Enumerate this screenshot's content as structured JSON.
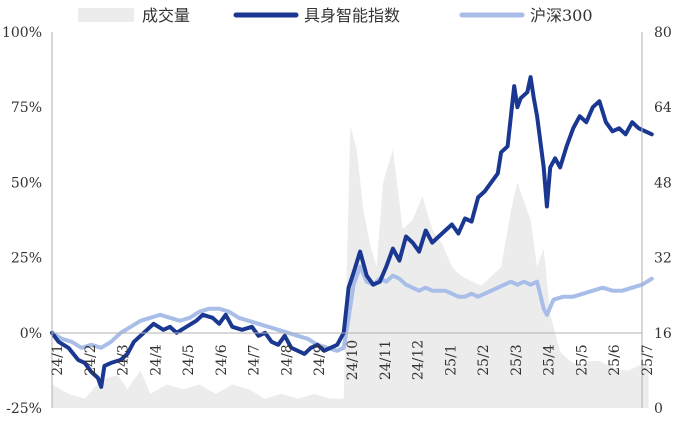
{
  "chart_data": {
    "type": "line",
    "title": "",
    "legend_position": "top",
    "grid": false,
    "legend": [
      {
        "label": "成交量",
        "kind": "area",
        "color": "#ececec"
      },
      {
        "label": "具身智能指数",
        "kind": "line",
        "color": "#1a3791"
      },
      {
        "label": "沪深300",
        "kind": "line",
        "color": "#a8bde8"
      }
    ],
    "y_left": {
      "ticks": [
        "100%",
        "75%",
        "50%",
        "25%",
        "0%",
        "-25%"
      ],
      "min": -25,
      "max": 100
    },
    "y_right": {
      "ticks": [
        "80",
        "64",
        "48",
        "32",
        "16",
        "0"
      ],
      "min": 0,
      "max": 80
    },
    "x_labels": [
      "24/1",
      "24/2",
      "24/3",
      "24/4",
      "24/5",
      "24/6",
      "24/7",
      "24/8",
      "24/9",
      "24/10",
      "24/11",
      "24/12",
      "25/1",
      "25/2",
      "25/3",
      "25/4",
      "25/5",
      "25/6",
      "25/7"
    ],
    "series": [
      {
        "name": "具身智能指数",
        "axis": "left",
        "points": [
          [
            0,
            0
          ],
          [
            0.2,
            -3
          ],
          [
            0.5,
            -5
          ],
          [
            0.8,
            -9
          ],
          [
            1,
            -10
          ],
          [
            1.2,
            -13
          ],
          [
            1.4,
            -15
          ],
          [
            1.5,
            -18
          ],
          [
            1.6,
            -11
          ],
          [
            1.8,
            -10
          ],
          [
            2.1,
            -9
          ],
          [
            2.3,
            -7
          ],
          [
            2.5,
            -3
          ],
          [
            2.8,
            0
          ],
          [
            3.1,
            3
          ],
          [
            3.4,
            1
          ],
          [
            3.6,
            2
          ],
          [
            3.8,
            0
          ],
          [
            4.1,
            2
          ],
          [
            4.4,
            4
          ],
          [
            4.6,
            6
          ],
          [
            4.9,
            5
          ],
          [
            5.1,
            3
          ],
          [
            5.3,
            6
          ],
          [
            5.5,
            2
          ],
          [
            5.8,
            1
          ],
          [
            6.1,
            2
          ],
          [
            6.3,
            -1
          ],
          [
            6.5,
            0
          ],
          [
            6.7,
            -3
          ],
          [
            6.9,
            -4
          ],
          [
            7.1,
            -1
          ],
          [
            7.3,
            -5
          ],
          [
            7.5,
            -6
          ],
          [
            7.7,
            -7
          ],
          [
            7.9,
            -5
          ],
          [
            8.1,
            -4
          ],
          [
            8.3,
            -6
          ],
          [
            8.5,
            -5
          ],
          [
            8.7,
            -4
          ],
          [
            8.9,
            0
          ],
          [
            9.05,
            15
          ],
          [
            9.2,
            20
          ],
          [
            9.4,
            27
          ],
          [
            9.6,
            19
          ],
          [
            9.8,
            16
          ],
          [
            10.0,
            17
          ],
          [
            10.2,
            22
          ],
          [
            10.4,
            28
          ],
          [
            10.6,
            24
          ],
          [
            10.8,
            32
          ],
          [
            11.0,
            30
          ],
          [
            11.2,
            27
          ],
          [
            11.4,
            34
          ],
          [
            11.6,
            30
          ],
          [
            11.8,
            32
          ],
          [
            12.0,
            34
          ],
          [
            12.2,
            36
          ],
          [
            12.4,
            33
          ],
          [
            12.6,
            38
          ],
          [
            12.8,
            37
          ],
          [
            13.0,
            45
          ],
          [
            13.2,
            47
          ],
          [
            13.4,
            50
          ],
          [
            13.6,
            53
          ],
          [
            13.7,
            60
          ],
          [
            13.9,
            62
          ],
          [
            14.0,
            72
          ],
          [
            14.1,
            82
          ],
          [
            14.2,
            75
          ],
          [
            14.3,
            78
          ],
          [
            14.5,
            80
          ],
          [
            14.6,
            85
          ],
          [
            14.7,
            78
          ],
          [
            14.8,
            72
          ],
          [
            15.0,
            55
          ],
          [
            15.1,
            42
          ],
          [
            15.2,
            55
          ],
          [
            15.35,
            58
          ],
          [
            15.5,
            55
          ],
          [
            15.7,
            62
          ],
          [
            15.9,
            68
          ],
          [
            16.1,
            72
          ],
          [
            16.3,
            70
          ],
          [
            16.5,
            75
          ],
          [
            16.7,
            77
          ],
          [
            16.9,
            70
          ],
          [
            17.1,
            67
          ],
          [
            17.3,
            68
          ],
          [
            17.5,
            66
          ],
          [
            17.7,
            70
          ],
          [
            17.9,
            68
          ],
          [
            18.1,
            67
          ],
          [
            18.3,
            66
          ]
        ]
      },
      {
        "name": "沪深300",
        "axis": "left",
        "points": [
          [
            0,
            0
          ],
          [
            0.3,
            -2
          ],
          [
            0.6,
            -3
          ],
          [
            0.9,
            -5
          ],
          [
            1.2,
            -4
          ],
          [
            1.5,
            -5
          ],
          [
            1.8,
            -3
          ],
          [
            2.1,
            0
          ],
          [
            2.4,
            2
          ],
          [
            2.7,
            4
          ],
          [
            3.0,
            5
          ],
          [
            3.3,
            6
          ],
          [
            3.6,
            5
          ],
          [
            3.9,
            4
          ],
          [
            4.2,
            5
          ],
          [
            4.5,
            7
          ],
          [
            4.8,
            8
          ],
          [
            5.1,
            8
          ],
          [
            5.4,
            7
          ],
          [
            5.7,
            5
          ],
          [
            6.0,
            4
          ],
          [
            6.3,
            3
          ],
          [
            6.6,
            2
          ],
          [
            6.9,
            1
          ],
          [
            7.2,
            0
          ],
          [
            7.5,
            -1
          ],
          [
            7.8,
            -2
          ],
          [
            8.1,
            -4
          ],
          [
            8.4,
            -5
          ],
          [
            8.7,
            -6
          ],
          [
            8.9,
            -5
          ],
          [
            9.05,
            5
          ],
          [
            9.2,
            16
          ],
          [
            9.4,
            22
          ],
          [
            9.6,
            17
          ],
          [
            9.8,
            16
          ],
          [
            10.0,
            18
          ],
          [
            10.2,
            17
          ],
          [
            10.4,
            19
          ],
          [
            10.6,
            18
          ],
          [
            10.8,
            16
          ],
          [
            11.0,
            15
          ],
          [
            11.2,
            14
          ],
          [
            11.4,
            15
          ],
          [
            11.6,
            14
          ],
          [
            11.8,
            14
          ],
          [
            12.0,
            14
          ],
          [
            12.2,
            13
          ],
          [
            12.4,
            12
          ],
          [
            12.6,
            12
          ],
          [
            12.8,
            13
          ],
          [
            13.0,
            12
          ],
          [
            13.2,
            13
          ],
          [
            13.4,
            14
          ],
          [
            13.6,
            15
          ],
          [
            13.8,
            16
          ],
          [
            14.0,
            17
          ],
          [
            14.2,
            16
          ],
          [
            14.4,
            17
          ],
          [
            14.6,
            16
          ],
          [
            14.8,
            17
          ],
          [
            15.0,
            8
          ],
          [
            15.1,
            6
          ],
          [
            15.3,
            11
          ],
          [
            15.6,
            12
          ],
          [
            15.9,
            12
          ],
          [
            16.2,
            13
          ],
          [
            16.5,
            14
          ],
          [
            16.8,
            15
          ],
          [
            17.1,
            14
          ],
          [
            17.4,
            14
          ],
          [
            17.7,
            15
          ],
          [
            18.0,
            16
          ],
          [
            18.3,
            18
          ]
        ]
      },
      {
        "name": "成交量",
        "axis": "right",
        "points": [
          [
            0,
            5
          ],
          [
            0.5,
            3
          ],
          [
            1.0,
            2
          ],
          [
            1.5,
            6
          ],
          [
            2.0,
            7
          ],
          [
            2.3,
            4
          ],
          [
            2.7,
            8
          ],
          [
            3.0,
            3
          ],
          [
            3.5,
            5
          ],
          [
            4.0,
            4
          ],
          [
            4.5,
            5
          ],
          [
            5.0,
            3
          ],
          [
            5.5,
            5
          ],
          [
            6.0,
            4
          ],
          [
            6.5,
            2
          ],
          [
            7.0,
            3
          ],
          [
            7.5,
            2
          ],
          [
            8.0,
            3
          ],
          [
            8.5,
            2
          ],
          [
            8.9,
            2
          ],
          [
            9.1,
            60
          ],
          [
            9.3,
            55
          ],
          [
            9.5,
            42
          ],
          [
            9.7,
            35
          ],
          [
            9.9,
            30
          ],
          [
            10.1,
            48
          ],
          [
            10.4,
            55
          ],
          [
            10.7,
            38
          ],
          [
            11.0,
            40
          ],
          [
            11.3,
            45
          ],
          [
            11.6,
            38
          ],
          [
            11.9,
            35
          ],
          [
            12.2,
            30
          ],
          [
            12.5,
            28
          ],
          [
            12.8,
            27
          ],
          [
            13.1,
            26
          ],
          [
            13.4,
            28
          ],
          [
            13.7,
            30
          ],
          [
            14.0,
            42
          ],
          [
            14.2,
            48
          ],
          [
            14.4,
            44
          ],
          [
            14.6,
            40
          ],
          [
            14.8,
            30
          ],
          [
            15.0,
            34
          ],
          [
            15.2,
            20
          ],
          [
            15.5,
            12
          ],
          [
            15.8,
            10
          ],
          [
            16.1,
            9
          ],
          [
            16.4,
            10
          ],
          [
            16.7,
            10
          ],
          [
            17.0,
            9
          ],
          [
            17.3,
            8
          ],
          [
            17.6,
            8
          ],
          [
            17.9,
            9
          ],
          [
            18.2,
            9
          ]
        ]
      }
    ]
  }
}
